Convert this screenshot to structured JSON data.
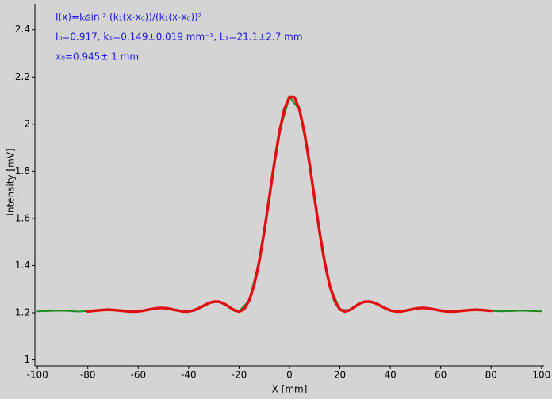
{
  "chart_data": {
    "type": "line",
    "annotations": [
      "I(x)=I₀sin ² (k₁(x-x₀))/(k₁(x-x₀))²",
      "I₀=0.917,  k₁=0.149±0.019 mm⁻¹,   L₁=21.1±2.7 mm",
      "x₀=0.945±  1 mm"
    ],
    "xlabel": "X [mm]",
    "ylabel": "Intensity [mV]",
    "xlim": [
      -101,
      101
    ],
    "ylim": [
      0.975,
      2.51
    ],
    "xticks": [
      -100,
      -80,
      -60,
      -40,
      -20,
      0,
      20,
      40,
      60,
      80,
      100
    ],
    "yticks": [
      1,
      1.2,
      1.4,
      1.6,
      1.8,
      2,
      2.2,
      2.4
    ],
    "series": [
      {
        "color": "#1a8a1a",
        "x": [
          -100,
          -96,
          -92,
          -88,
          -84,
          -80,
          -76,
          -72,
          -68,
          -64,
          -60,
          -56,
          -52,
          -48,
          -44,
          -40,
          -36,
          -32,
          -28,
          -24,
          -20,
          -16,
          -12,
          -8,
          -4,
          0,
          4,
          8,
          12,
          16,
          20,
          24,
          28,
          32,
          36,
          40,
          44,
          48,
          52,
          56,
          60,
          64,
          68,
          72,
          76,
          80,
          84,
          88,
          92,
          96,
          100
        ],
        "values": [
          1.206,
          1.207,
          1.209,
          1.208,
          1.205,
          1.207,
          1.211,
          1.212,
          1.211,
          1.205,
          1.207,
          1.212,
          1.221,
          1.217,
          1.208,
          1.206,
          1.218,
          1.242,
          1.246,
          1.224,
          1.206,
          1.252,
          1.417,
          1.689,
          1.967,
          2.115,
          2.061,
          1.83,
          1.537,
          1.315,
          1.213,
          1.211,
          1.241,
          1.248,
          1.229,
          1.209,
          1.205,
          1.214,
          1.219,
          1.218,
          1.209,
          1.205,
          1.209,
          1.213,
          1.212,
          1.208,
          1.206,
          1.207,
          1.209,
          1.207,
          1.206
        ]
      },
      {
        "color": "#e01010",
        "x": [
          -80,
          -78,
          -76,
          -74,
          -72,
          -70,
          -68,
          -66,
          -64,
          -62,
          -60,
          -58,
          -56,
          -54,
          -52,
          -50,
          -48,
          -46,
          -44,
          -42,
          -40,
          -38,
          -36,
          -34,
          -32,
          -30,
          -28,
          -26,
          -24,
          -22,
          -20,
          -18,
          -16,
          -14,
          -12,
          -10,
          -8,
          -6,
          -4,
          -2,
          0,
          2,
          4,
          6,
          8,
          10,
          12,
          14,
          16,
          18,
          20,
          22,
          24,
          26,
          28,
          30,
          32,
          34,
          36,
          38,
          40,
          42,
          44,
          46,
          48,
          50,
          52,
          54,
          56,
          58,
          60,
          62,
          64,
          66,
          68,
          70,
          72,
          74,
          76,
          78,
          80
        ],
        "values": [
          1.206,
          1.208,
          1.21,
          1.212,
          1.213,
          1.212,
          1.21,
          1.208,
          1.206,
          1.205,
          1.206,
          1.209,
          1.213,
          1.217,
          1.22,
          1.22,
          1.218,
          1.213,
          1.209,
          1.205,
          1.206,
          1.21,
          1.219,
          1.23,
          1.241,
          1.247,
          1.247,
          1.239,
          1.225,
          1.211,
          1.205,
          1.215,
          1.251,
          1.318,
          1.418,
          1.545,
          1.69,
          1.836,
          1.966,
          2.065,
          2.116,
          2.114,
          2.06,
          1.96,
          1.829,
          1.682,
          1.538,
          1.412,
          1.314,
          1.249,
          1.214,
          1.205,
          1.212,
          1.226,
          1.24,
          1.247,
          1.247,
          1.241,
          1.23,
          1.219,
          1.21,
          1.206,
          1.205,
          1.209,
          1.213,
          1.218,
          1.22,
          1.22,
          1.217,
          1.213,
          1.209,
          1.206,
          1.205,
          1.206,
          1.208,
          1.21,
          1.212,
          1.213,
          1.212,
          1.21,
          1.208
        ]
      }
    ]
  }
}
